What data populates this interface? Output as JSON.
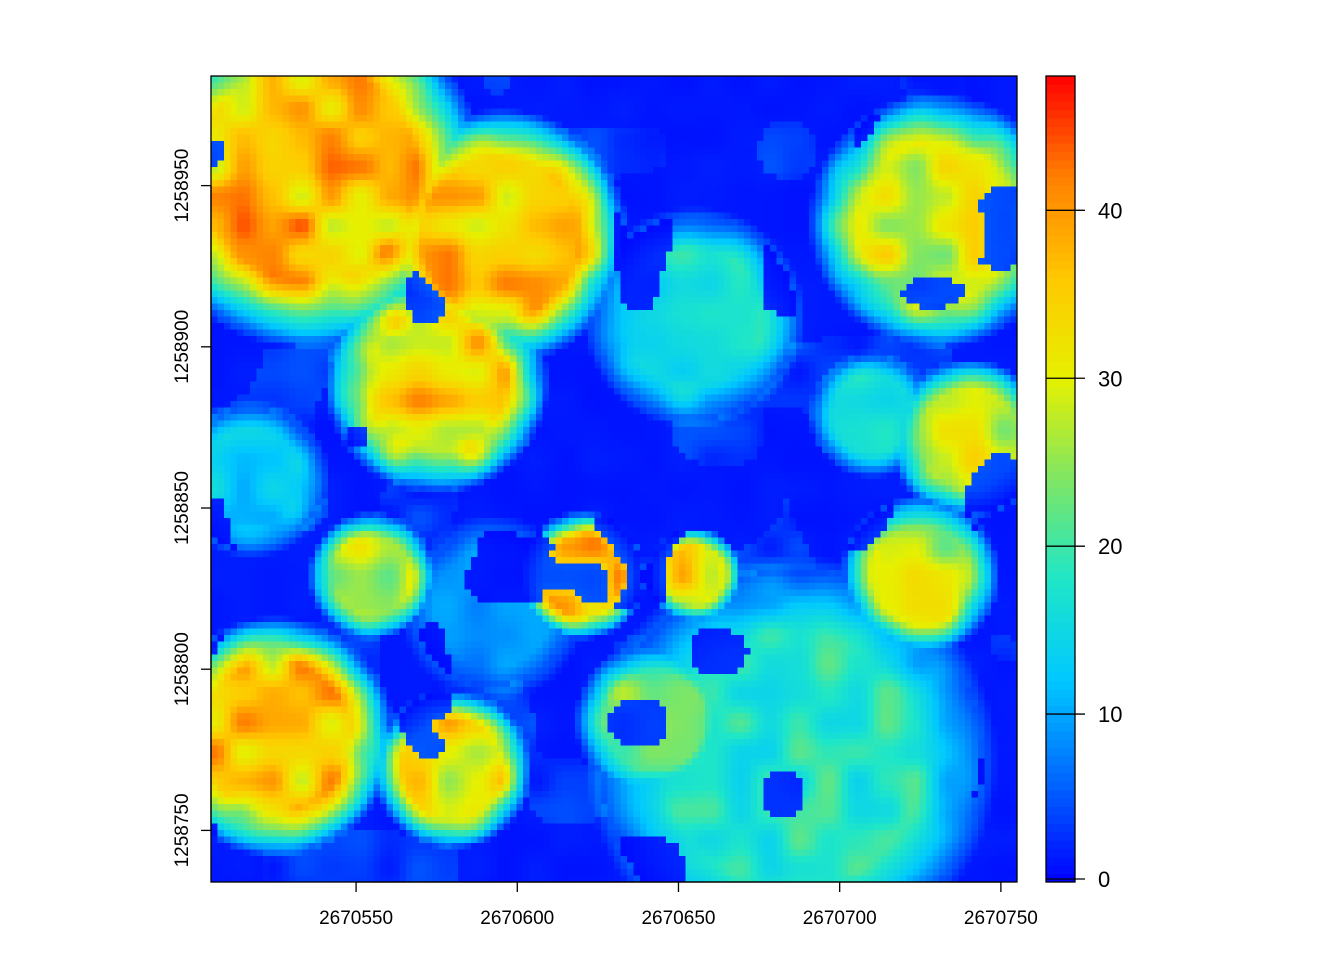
{
  "chart_data": {
    "type": "heatmap",
    "title": "",
    "xlabel": "",
    "ylabel": "",
    "xlim": [
      2670505,
      2670755
    ],
    "ylim": [
      1258734,
      1258984
    ],
    "x_ticks": [
      2670550,
      2670600,
      2670650,
      2670700,
      2670750
    ],
    "y_ticks": [
      1258750,
      1258800,
      1258850,
      1258900,
      1258950
    ],
    "x_tick_labels": [
      "2670550",
      "2670600",
      "2670650",
      "2670700",
      "2670750"
    ],
    "y_tick_labels": [
      "1258750",
      "1258800",
      "1258850",
      "1258900",
      "1258950"
    ],
    "value_range": [
      0,
      48
    ],
    "colorbar_ticks": [
      0,
      10,
      20,
      30,
      40
    ],
    "colorbar_tick_labels": [
      "0",
      "10",
      "20",
      "30",
      "40"
    ],
    "colormap": [
      "#0000ff",
      "#0066ff",
      "#00c8ff",
      "#1ee6c8",
      "#7fe664",
      "#e6f000",
      "#ffc800",
      "#ff8000",
      "#ff0000"
    ],
    "grid": false,
    "legend": "right",
    "regions_description": "tall orange/red tree crowns (30-45) along west and north-west; blue open ground (0-5) through centre and north; cyan-green crowns (15-25) in south-east and centre-north; yellow crowns (28-35) in north-east and east"
  }
}
